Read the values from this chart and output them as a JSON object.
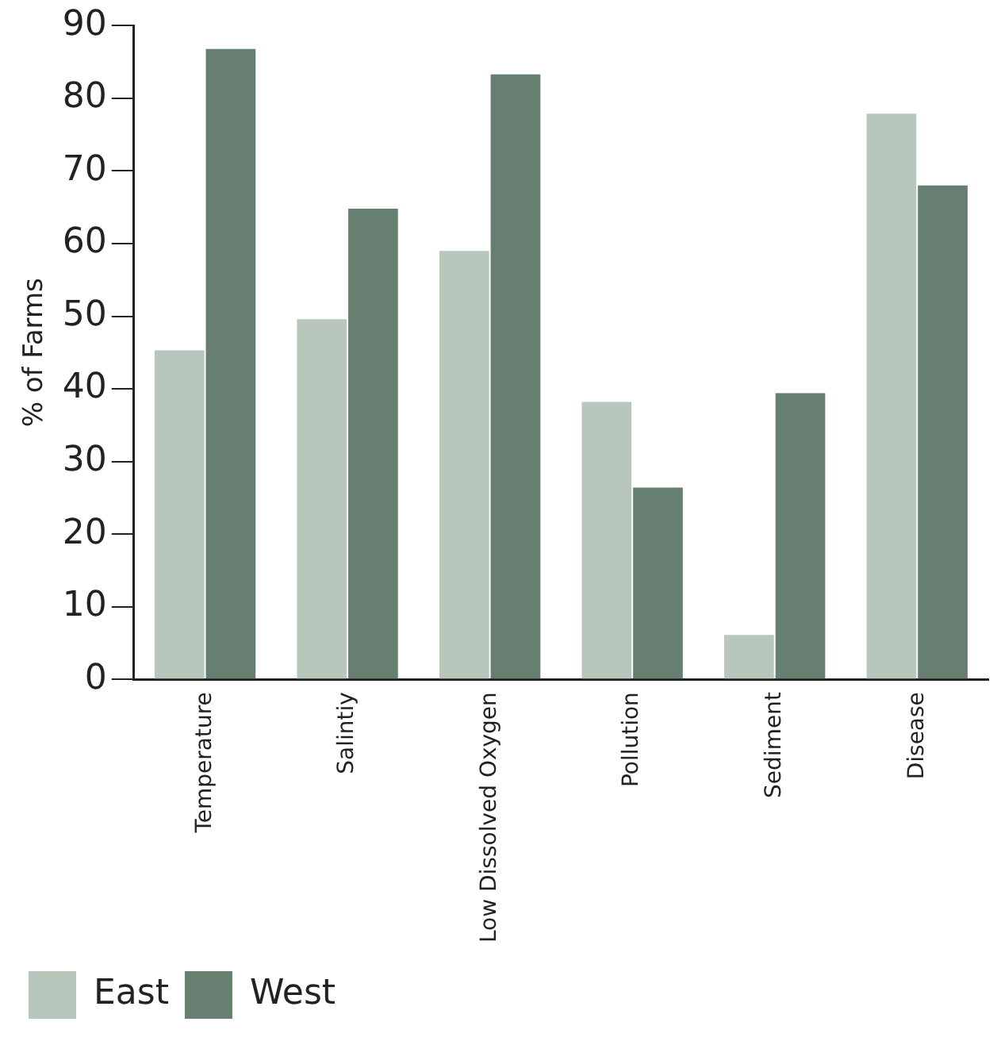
{
  "chart_data": {
    "type": "bar",
    "ylabel": "% of Farms",
    "categories": [
      "Temperature",
      "Salintiy",
      "Low Dissolved Oxygen",
      "Pollution",
      "Sediment",
      "Disease"
    ],
    "series": [
      {
        "name": "East",
        "color": "#b7c7bc",
        "values": [
          45.3,
          49.6,
          59,
          38.2,
          6.1,
          77.9
        ]
      },
      {
        "name": "West",
        "color": "#667f70",
        "values": [
          86.8,
          64.8,
          83.3,
          26.4,
          39.4,
          68
        ]
      }
    ],
    "ylim": [
      0,
      90
    ],
    "yticks": [
      0,
      10,
      20,
      30,
      40,
      50,
      60,
      70,
      80,
      90
    ],
    "grid": false,
    "legend": "bottom left"
  }
}
